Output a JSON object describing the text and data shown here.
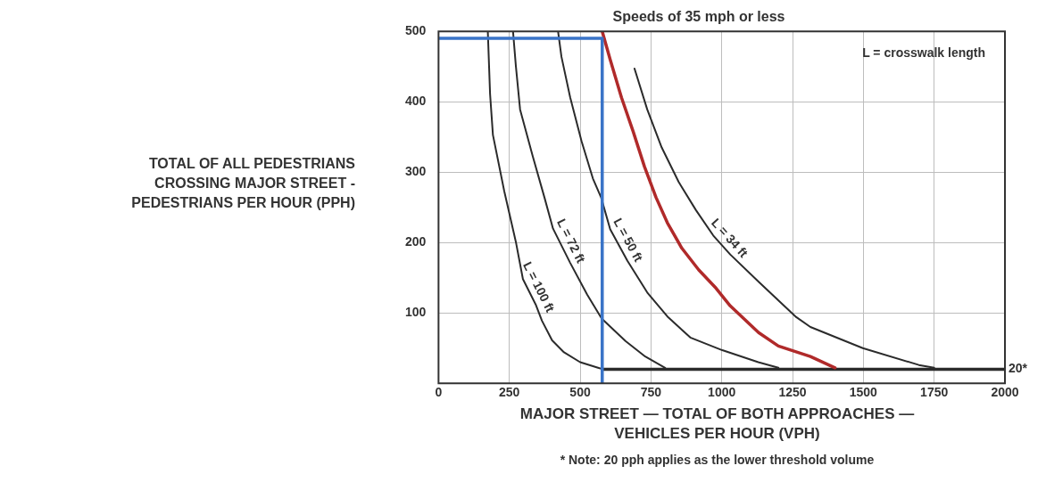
{
  "chart_data": {
    "type": "line",
    "title": "Speeds of 35 mph or less",
    "xlabel": "MAJOR STREET — TOTAL OF BOTH APPROACHES — VEHICLES PER HOUR (VPH)",
    "ylabel": "TOTAL OF ALL PEDESTRIANS CROSSING MAJOR STREET - PEDESTRIANS PER HOUR (PPH)",
    "xlim": [
      0,
      2000
    ],
    "xticks": [
      0,
      250,
      500,
      750,
      1000,
      1250,
      1500,
      1750,
      2000
    ],
    "ylim": [
      0,
      500
    ],
    "yticks": [
      100,
      200,
      300,
      400,
      500
    ],
    "grid": true,
    "legend": false,
    "marker": "none",
    "line_style": "solid",
    "series": [
      {
        "color": "#3a74c8",
        "x": [
          0,
          578,
          578
        ],
        "values": [
          490,
          490,
          0
        ]
      },
      {
        "name": "L = 100 ft",
        "color": "#2b2b2b",
        "x": [
          174,
          182,
          192,
          232,
          273,
          298,
          343,
          365,
          401,
          443,
          500,
          563,
          580
        ],
        "values": [
          500,
          411,
          353,
          273,
          201,
          148,
          112,
          89,
          61,
          44,
          30,
          22,
          20
        ]
      },
      {
        "name": "L = 72 ft",
        "color": "#2b2b2b",
        "x": [
          263,
          273,
          288,
          333,
          374,
          404,
          465,
          525,
          576,
          660,
          730,
          800
        ],
        "values": [
          500,
          451,
          389,
          322,
          264,
          220,
          171,
          126,
          92,
          60,
          38,
          22
        ]
      },
      {
        "name": "L = 50 ft",
        "color": "#2b2b2b",
        "x": [
          422,
          434,
          465,
          505,
          545,
          574,
          606,
          667,
          737,
          808,
          889,
          1002,
          1129,
          1200
        ],
        "values": [
          500,
          464,
          406,
          344,
          291,
          264,
          219,
          174,
          129,
          95,
          65,
          47,
          30,
          22
        ]
      },
      {
        "color": "#b02a2a",
        "x": [
          578,
          606,
          646,
          687,
          727,
          768,
          808,
          859,
          919,
          980,
          1030,
          1130,
          1200,
          1313,
          1400
        ],
        "values": [
          500,
          460,
          406,
          358,
          308,
          264,
          228,
          192,
          161,
          135,
          110,
          72,
          53,
          38,
          22
        ]
      },
      {
        "name": "L = 34 ft",
        "color": "#2b2b2b",
        "x": [
          692,
          737,
          788,
          848,
          909,
          970,
          1030,
          1131,
          1263,
          1313,
          1498,
          1696,
          1750
        ],
        "values": [
          447,
          389,
          335,
          286,
          246,
          210,
          183,
          144,
          94,
          80,
          50,
          26,
          22
        ]
      },
      {
        "color": "#2b2b2b",
        "x": [
          578,
          2000
        ],
        "values": [
          20,
          20
        ]
      }
    ],
    "annotations": [
      "L = crosswalk length",
      {
        "text": "20*",
        "x": 2000,
        "y": 20
      },
      "* Note: 20 pph applies as the lower threshold volume"
    ]
  }
}
